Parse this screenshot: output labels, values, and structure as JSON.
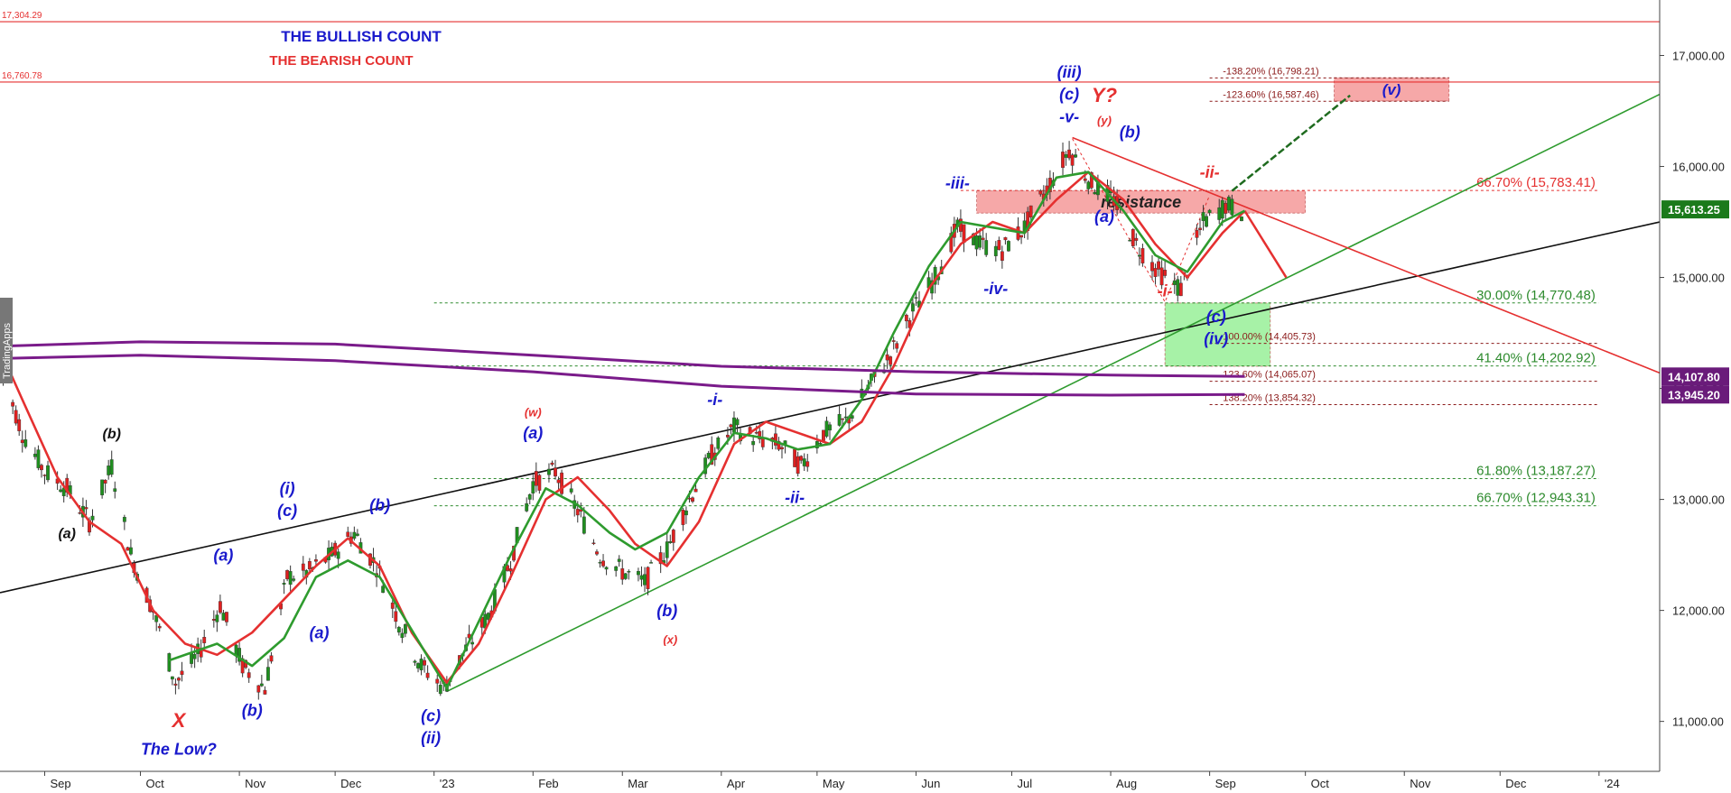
{
  "chart_data": {
    "type": "line",
    "title": "THE BULLISH COUNT",
    "subtitle": "THE BEARISH COUNT",
    "watermark": "TradingApps",
    "x_labels": [
      {
        "label": "Sep",
        "date": "2022-09-01"
      },
      {
        "label": "Oct",
        "date": "2022-10-01"
      },
      {
        "label": "Nov",
        "date": "2022-11-01"
      },
      {
        "label": "Dec",
        "date": "2022-12-01"
      },
      {
        "label": "'23",
        "date": "2023-01-01"
      },
      {
        "label": "Feb",
        "date": "2023-02-01"
      },
      {
        "label": "Mar",
        "date": "2023-03-01"
      },
      {
        "label": "Apr",
        "date": "2023-04-01"
      },
      {
        "label": "May",
        "date": "2023-05-01"
      },
      {
        "label": "Jun",
        "date": "2023-06-01"
      },
      {
        "label": "Jul",
        "date": "2023-07-01"
      },
      {
        "label": "Aug",
        "date": "2023-08-01"
      },
      {
        "label": "Sep",
        "date": "2023-09-01"
      },
      {
        "label": "Oct",
        "date": "2023-10-01"
      },
      {
        "label": "Nov",
        "date": "2023-11-01"
      },
      {
        "label": "Dec",
        "date": "2023-12-01"
      },
      {
        "label": "'24",
        "date": "2024-01-01"
      }
    ],
    "y_ticks": [
      "11,000.00",
      "12,000.00",
      "13,000.00",
      "14,000.00",
      "15,000.00",
      "16,000.00",
      "17,000.00"
    ],
    "ylim": [
      10550,
      17500
    ],
    "xlim": [
      "2022-08-18",
      "2024-01-20"
    ],
    "price_badges": [
      {
        "label": "15,613.25",
        "value": 15613.25,
        "color": "#1b7a1b"
      },
      {
        "label": "14,107.80",
        "value": 14107.8,
        "color": "#6a1b7a"
      },
      {
        "label": "13,945.20",
        "value": 13945.2,
        "color": "#6a1b7a"
      }
    ],
    "horizontal_lines": [
      {
        "label": "17,304.29",
        "value": 17304.29,
        "color": "#e53030"
      },
      {
        "label": "16,760.78",
        "value": 16760.78,
        "color": "#e53030"
      }
    ],
    "fib_levels": [
      {
        "label": "-138.20% (16,798.21)",
        "value": 16798.21,
        "color": "#8b1a1a",
        "x_start": "2023-09-01",
        "x_end": "2023-11-15"
      },
      {
        "label": "-123.60% (16,587.46)",
        "value": 16587.46,
        "color": "#8b1a1a",
        "x_start": "2023-09-01",
        "x_end": "2023-11-15"
      },
      {
        "label": "66.70% (15,783.41)",
        "value": 15783.41,
        "color": "#e53030",
        "x_start": "2023-06-15",
        "x_end": "2024-01-01"
      },
      {
        "label": "30.00% (14,770.48)",
        "value": 14770.48,
        "color": "#2e8b2e",
        "x_start": "2023-01-01",
        "x_end": "2024-01-01"
      },
      {
        "label": "100.00% (14,405.73)",
        "value": 14405.73,
        "color": "#8b1a1a",
        "x_start": "2023-09-01",
        "x_end": "2024-01-01"
      },
      {
        "label": "41.40% (14,202.92)",
        "value": 14202.92,
        "color": "#2e8b2e",
        "x_start": "2023-01-01",
        "x_end": "2024-01-01"
      },
      {
        "label": "123.60% (14,065.07)",
        "value": 14065.07,
        "color": "#8b1a1a",
        "x_start": "2023-09-01",
        "x_end": "2024-01-01"
      },
      {
        "label": "138.20% (13,854.32)",
        "value": 13854.32,
        "color": "#8b1a1a",
        "x_start": "2023-09-01",
        "x_end": "2024-01-01"
      },
      {
        "label": "61.80% (13,187.27)",
        "value": 13187.27,
        "color": "#2e8b2e",
        "x_start": "2023-01-01",
        "x_end": "2024-01-01"
      },
      {
        "label": "66.70% (12,943.31)",
        "value": 12943.31,
        "color": "#2e8b2e",
        "x_start": "2023-01-01",
        "x_end": "2024-01-01"
      }
    ],
    "zones": [
      {
        "label": "resistance",
        "x_start": "2023-06-20",
        "x_end": "2023-10-01",
        "y_low": 15580,
        "y_high": 15780,
        "color": "#f59a9a"
      },
      {
        "label": "(v)",
        "x_start": "2023-10-10",
        "x_end": "2023-11-15",
        "y_low": 16590,
        "y_high": 16800,
        "color": "#f59a9a"
      },
      {
        "label": "",
        "x_start": "2023-08-18",
        "x_end": "2023-09-20",
        "y_low": 14200,
        "y_high": 14770,
        "color": "#98f098"
      }
    ],
    "trendlines": [
      {
        "name": "black",
        "color": "#111111",
        "points": [
          [
            "2022-08-18",
            12160
          ],
          [
            "2024-01-20",
            15500
          ]
        ]
      },
      {
        "name": "green",
        "color": "#2e9b2e",
        "points": [
          [
            "2023-01-05",
            11270
          ],
          [
            "2024-01-20",
            16650
          ]
        ]
      },
      {
        "name": "red",
        "color": "#e53030",
        "points": [
          [
            "2023-07-20",
            16260
          ],
          [
            "2024-01-20",
            14140
          ]
        ]
      },
      {
        "name": "projection-up",
        "color": "#1f6b1f",
        "points": [
          [
            "2023-09-08",
            15780
          ],
          [
            "2023-10-15",
            16640
          ]
        ],
        "dashed": true
      },
      {
        "name": "projection-down",
        "color": "#e53030",
        "points": [
          [
            "2023-09-12",
            15600
          ],
          [
            "2023-09-25",
            15000
          ]
        ]
      }
    ],
    "series": [
      {
        "role": "red-average",
        "color": "#e53030",
        "points": [
          [
            "2022-08-18",
            14350
          ],
          [
            "2022-08-25",
            13900
          ],
          [
            "2022-09-05",
            13200
          ],
          [
            "2022-09-15",
            12800
          ],
          [
            "2022-09-25",
            12600
          ],
          [
            "2022-10-05",
            12000
          ],
          [
            "2022-10-15",
            11700
          ],
          [
            "2022-10-25",
            11600
          ],
          [
            "2022-11-05",
            11800
          ],
          [
            "2022-11-15",
            12100
          ],
          [
            "2022-11-25",
            12400
          ],
          [
            "2022-12-05",
            12650
          ],
          [
            "2022-12-15",
            12400
          ],
          [
            "2022-12-25",
            11800
          ],
          [
            "2023-01-05",
            11350
          ],
          [
            "2023-01-15",
            11700
          ],
          [
            "2023-01-25",
            12300
          ],
          [
            "2023-02-05",
            13000
          ],
          [
            "2023-02-15",
            13200
          ],
          [
            "2023-02-25",
            12900
          ],
          [
            "2023-03-05",
            12600
          ],
          [
            "2023-03-15",
            12400
          ],
          [
            "2023-03-25",
            12800
          ],
          [
            "2023-04-05",
            13500
          ],
          [
            "2023-04-15",
            13700
          ],
          [
            "2023-04-25",
            13600
          ],
          [
            "2023-05-05",
            13500
          ],
          [
            "2023-05-15",
            13700
          ],
          [
            "2023-05-25",
            14200
          ],
          [
            "2023-06-05",
            14900
          ],
          [
            "2023-06-15",
            15300
          ],
          [
            "2023-06-25",
            15500
          ],
          [
            "2023-07-05",
            15400
          ],
          [
            "2023-07-15",
            15700
          ],
          [
            "2023-07-25",
            15950
          ],
          [
            "2023-08-05",
            15700
          ],
          [
            "2023-08-15",
            15300
          ],
          [
            "2023-08-25",
            15000
          ],
          [
            "2023-09-05",
            15400
          ],
          [
            "2023-09-12",
            15600
          ]
        ]
      },
      {
        "role": "green-average",
        "color": "#2e9b2e",
        "points": [
          [
            "2022-10-10",
            11550
          ],
          [
            "2022-10-25",
            11700
          ],
          [
            "2022-11-05",
            11500
          ],
          [
            "2022-11-15",
            11750
          ],
          [
            "2022-11-25",
            12300
          ],
          [
            "2022-12-05",
            12450
          ],
          [
            "2022-12-15",
            12300
          ],
          [
            "2023-01-05",
            11300
          ],
          [
            "2023-01-15",
            11900
          ],
          [
            "2023-01-25",
            12500
          ],
          [
            "2023-02-05",
            13100
          ],
          [
            "2023-02-15",
            12950
          ],
          [
            "2023-02-25",
            12700
          ],
          [
            "2023-03-05",
            12550
          ],
          [
            "2023-03-15",
            12700
          ],
          [
            "2023-03-25",
            13200
          ],
          [
            "2023-04-05",
            13600
          ],
          [
            "2023-04-15",
            13550
          ],
          [
            "2023-04-25",
            13450
          ],
          [
            "2023-05-05",
            13500
          ],
          [
            "2023-05-15",
            13900
          ],
          [
            "2023-05-25",
            14500
          ],
          [
            "2023-06-05",
            15100
          ],
          [
            "2023-06-15",
            15500
          ],
          [
            "2023-06-25",
            15450
          ],
          [
            "2023-07-05",
            15400
          ],
          [
            "2023-07-15",
            15900
          ],
          [
            "2023-07-25",
            15950
          ],
          [
            "2023-08-05",
            15600
          ],
          [
            "2023-08-15",
            15200
          ],
          [
            "2023-08-25",
            15050
          ],
          [
            "2023-09-05",
            15500
          ],
          [
            "2023-09-12",
            15600
          ]
        ]
      },
      {
        "role": "purple-average-1",
        "color": "#7a1b8a",
        "points": [
          [
            "2022-08-18",
            14380
          ],
          [
            "2022-10-01",
            14420
          ],
          [
            "2022-12-01",
            14400
          ],
          [
            "2023-02-01",
            14300
          ],
          [
            "2023-04-01",
            14200
          ],
          [
            "2023-06-01",
            14150
          ],
          [
            "2023-08-01",
            14120
          ],
          [
            "2023-09-12",
            14107.8
          ]
        ]
      },
      {
        "role": "purple-average-2",
        "color": "#7a1b8a",
        "points": [
          [
            "2022-08-18",
            14270
          ],
          [
            "2022-10-01",
            14300
          ],
          [
            "2022-12-01",
            14250
          ],
          [
            "2023-02-01",
            14150
          ],
          [
            "2023-04-01",
            14020
          ],
          [
            "2023-06-01",
            13950
          ],
          [
            "2023-08-01",
            13940
          ],
          [
            "2023-09-12",
            13945.2
          ]
        ]
      }
    ],
    "price_path": [
      [
        "2022-08-18",
        14200
      ],
      [
        "2022-08-25",
        13600
      ],
      [
        "2022-09-01",
        13250
      ],
      [
        "2022-09-08",
        13100
      ],
      [
        "2022-09-15",
        12800
      ],
      [
        "2022-09-22",
        13300
      ],
      [
        "2022-09-28",
        12500
      ],
      [
        "2022-10-05",
        12000
      ],
      [
        "2022-10-12",
        11350
      ],
      [
        "2022-10-19",
        11600
      ],
      [
        "2022-10-26",
        12050
      ],
      [
        "2022-11-02",
        11500
      ],
      [
        "2022-11-09",
        11300
      ],
      [
        "2022-11-16",
        12300
      ],
      [
        "2022-11-23",
        12350
      ],
      [
        "2022-11-30",
        12500
      ],
      [
        "2022-12-07",
        12700
      ],
      [
        "2022-12-14",
        12400
      ],
      [
        "2022-12-21",
        11900
      ],
      [
        "2022-12-28",
        11500
      ],
      [
        "2023-01-04",
        11300
      ],
      [
        "2023-01-11",
        11650
      ],
      [
        "2023-01-18",
        11950
      ],
      [
        "2023-01-25",
        12450
      ],
      [
        "2023-02-01",
        13150
      ],
      [
        "2023-02-08",
        13250
      ],
      [
        "2023-02-15",
        12900
      ],
      [
        "2023-02-22",
        12500
      ],
      [
        "2023-03-01",
        12350
      ],
      [
        "2023-03-08",
        12250
      ],
      [
        "2023-03-15",
        12550
      ],
      [
        "2023-03-22",
        13000
      ],
      [
        "2023-03-29",
        13400
      ],
      [
        "2023-04-05",
        13650
      ],
      [
        "2023-04-12",
        13550
      ],
      [
        "2023-04-19",
        13500
      ],
      [
        "2023-04-26",
        13300
      ],
      [
        "2023-05-03",
        13600
      ],
      [
        "2023-05-10",
        13700
      ],
      [
        "2023-05-17",
        14000
      ],
      [
        "2023-05-24",
        14300
      ],
      [
        "2023-05-31",
        14700
      ],
      [
        "2023-06-07",
        15000
      ],
      [
        "2023-06-14",
        15450
      ],
      [
        "2023-06-21",
        15300
      ],
      [
        "2023-06-28",
        15250
      ],
      [
        "2023-07-05",
        15450
      ],
      [
        "2023-07-12",
        15800
      ],
      [
        "2023-07-19",
        16150
      ],
      [
        "2023-07-26",
        15850
      ],
      [
        "2023-08-02",
        15700
      ],
      [
        "2023-08-09",
        15300
      ],
      [
        "2023-08-16",
        15050
      ],
      [
        "2023-08-23",
        14900
      ],
      [
        "2023-08-30",
        15500
      ],
      [
        "2023-09-06",
        15650
      ],
      [
        "2023-09-12",
        15600
      ]
    ],
    "wave_labels": [
      {
        "text": "(b)",
        "date": "2022-09-22",
        "value": 13550,
        "color": "#111111",
        "size": 16
      },
      {
        "text": "(a)",
        "date": "2022-09-08",
        "value": 12650,
        "color": "#111111",
        "size": 16
      },
      {
        "text": "X",
        "date": "2022-10-13",
        "value": 10950,
        "color": "#e53030",
        "size": 22
      },
      {
        "text": "The Low?",
        "date": "2022-10-13",
        "value": 10700,
        "color": "#1a1acc",
        "size": 18
      },
      {
        "text": "(a)",
        "date": "2022-10-27",
        "value": 12450,
        "color": "#1a1acc",
        "size": 18
      },
      {
        "text": "(b)",
        "date": "2022-11-05",
        "value": 11050,
        "color": "#1a1acc",
        "size": 18
      },
      {
        "text": "(i)",
        "date": "2022-11-16",
        "value": 13050,
        "color": "#1a1acc",
        "size": 18
      },
      {
        "text": "(c)",
        "date": "2022-11-16",
        "value": 12850,
        "color": "#1a1acc",
        "size": 18
      },
      {
        "text": "(a)",
        "date": "2022-11-26",
        "value": 11750,
        "color": "#1a1acc",
        "size": 18
      },
      {
        "text": "(b)",
        "date": "2022-12-15",
        "value": 12900,
        "color": "#1a1acc",
        "size": 18
      },
      {
        "text": "(c)",
        "date": "2022-12-31",
        "value": 11000,
        "color": "#1a1acc",
        "size": 18
      },
      {
        "text": "(ii)",
        "date": "2022-12-31",
        "value": 10800,
        "color": "#1a1acc",
        "size": 18
      },
      {
        "text": "(w)",
        "date": "2023-02-01",
        "value": 13750,
        "color": "#e53030",
        "size": 13
      },
      {
        "text": "(a)",
        "date": "2023-02-01",
        "value": 13550,
        "color": "#1a1acc",
        "size": 18
      },
      {
        "text": "(b)",
        "date": "2023-03-15",
        "value": 11950,
        "color": "#1a1acc",
        "size": 18
      },
      {
        "text": "(x)",
        "date": "2023-03-16",
        "value": 11700,
        "color": "#e53030",
        "size": 13
      },
      {
        "text": "-i-",
        "date": "2023-03-30",
        "value": 13850,
        "color": "#1a1acc",
        "size": 18
      },
      {
        "text": "-ii-",
        "date": "2023-04-24",
        "value": 12970,
        "color": "#1a1acc",
        "size": 18
      },
      {
        "text": "-iii-",
        "date": "2023-06-14",
        "value": 15800,
        "color": "#1a1acc",
        "size": 18
      },
      {
        "text": "-iv-",
        "date": "2023-06-26",
        "value": 14850,
        "color": "#1a1acc",
        "size": 18
      },
      {
        "text": "(iii)",
        "date": "2023-07-19",
        "value": 16800,
        "color": "#1a1acc",
        "size": 18
      },
      {
        "text": "(c)",
        "date": "2023-07-19",
        "value": 16600,
        "color": "#1a1acc",
        "size": 18
      },
      {
        "text": "-v-",
        "date": "2023-07-19",
        "value": 16400,
        "color": "#1a1acc",
        "size": 18
      },
      {
        "text": "Y?",
        "date": "2023-07-30",
        "value": 16580,
        "color": "#e53030",
        "size": 22
      },
      {
        "text": "(y)",
        "date": "2023-07-30",
        "value": 16380,
        "color": "#e53030",
        "size": 13
      },
      {
        "text": "(b)",
        "date": "2023-08-07",
        "value": 16260,
        "color": "#1a1acc",
        "size": 18
      },
      {
        "text": "(a)",
        "date": "2023-07-30",
        "value": 15500,
        "color": "#1a1acc",
        "size": 18
      },
      {
        "text": "-ii-",
        "date": "2023-09-01",
        "value": 15900,
        "color": "#e53030",
        "size": 18
      },
      {
        "text": "-i-",
        "date": "2023-08-18",
        "value": 14830,
        "color": "#e53030",
        "size": 18
      },
      {
        "text": "(c)",
        "date": "2023-09-03",
        "value": 14600,
        "color": "#1a1acc",
        "size": 18
      },
      {
        "text": "(iv)",
        "date": "2023-09-03",
        "value": 14400,
        "color": "#1a1acc",
        "size": 18
      }
    ]
  }
}
